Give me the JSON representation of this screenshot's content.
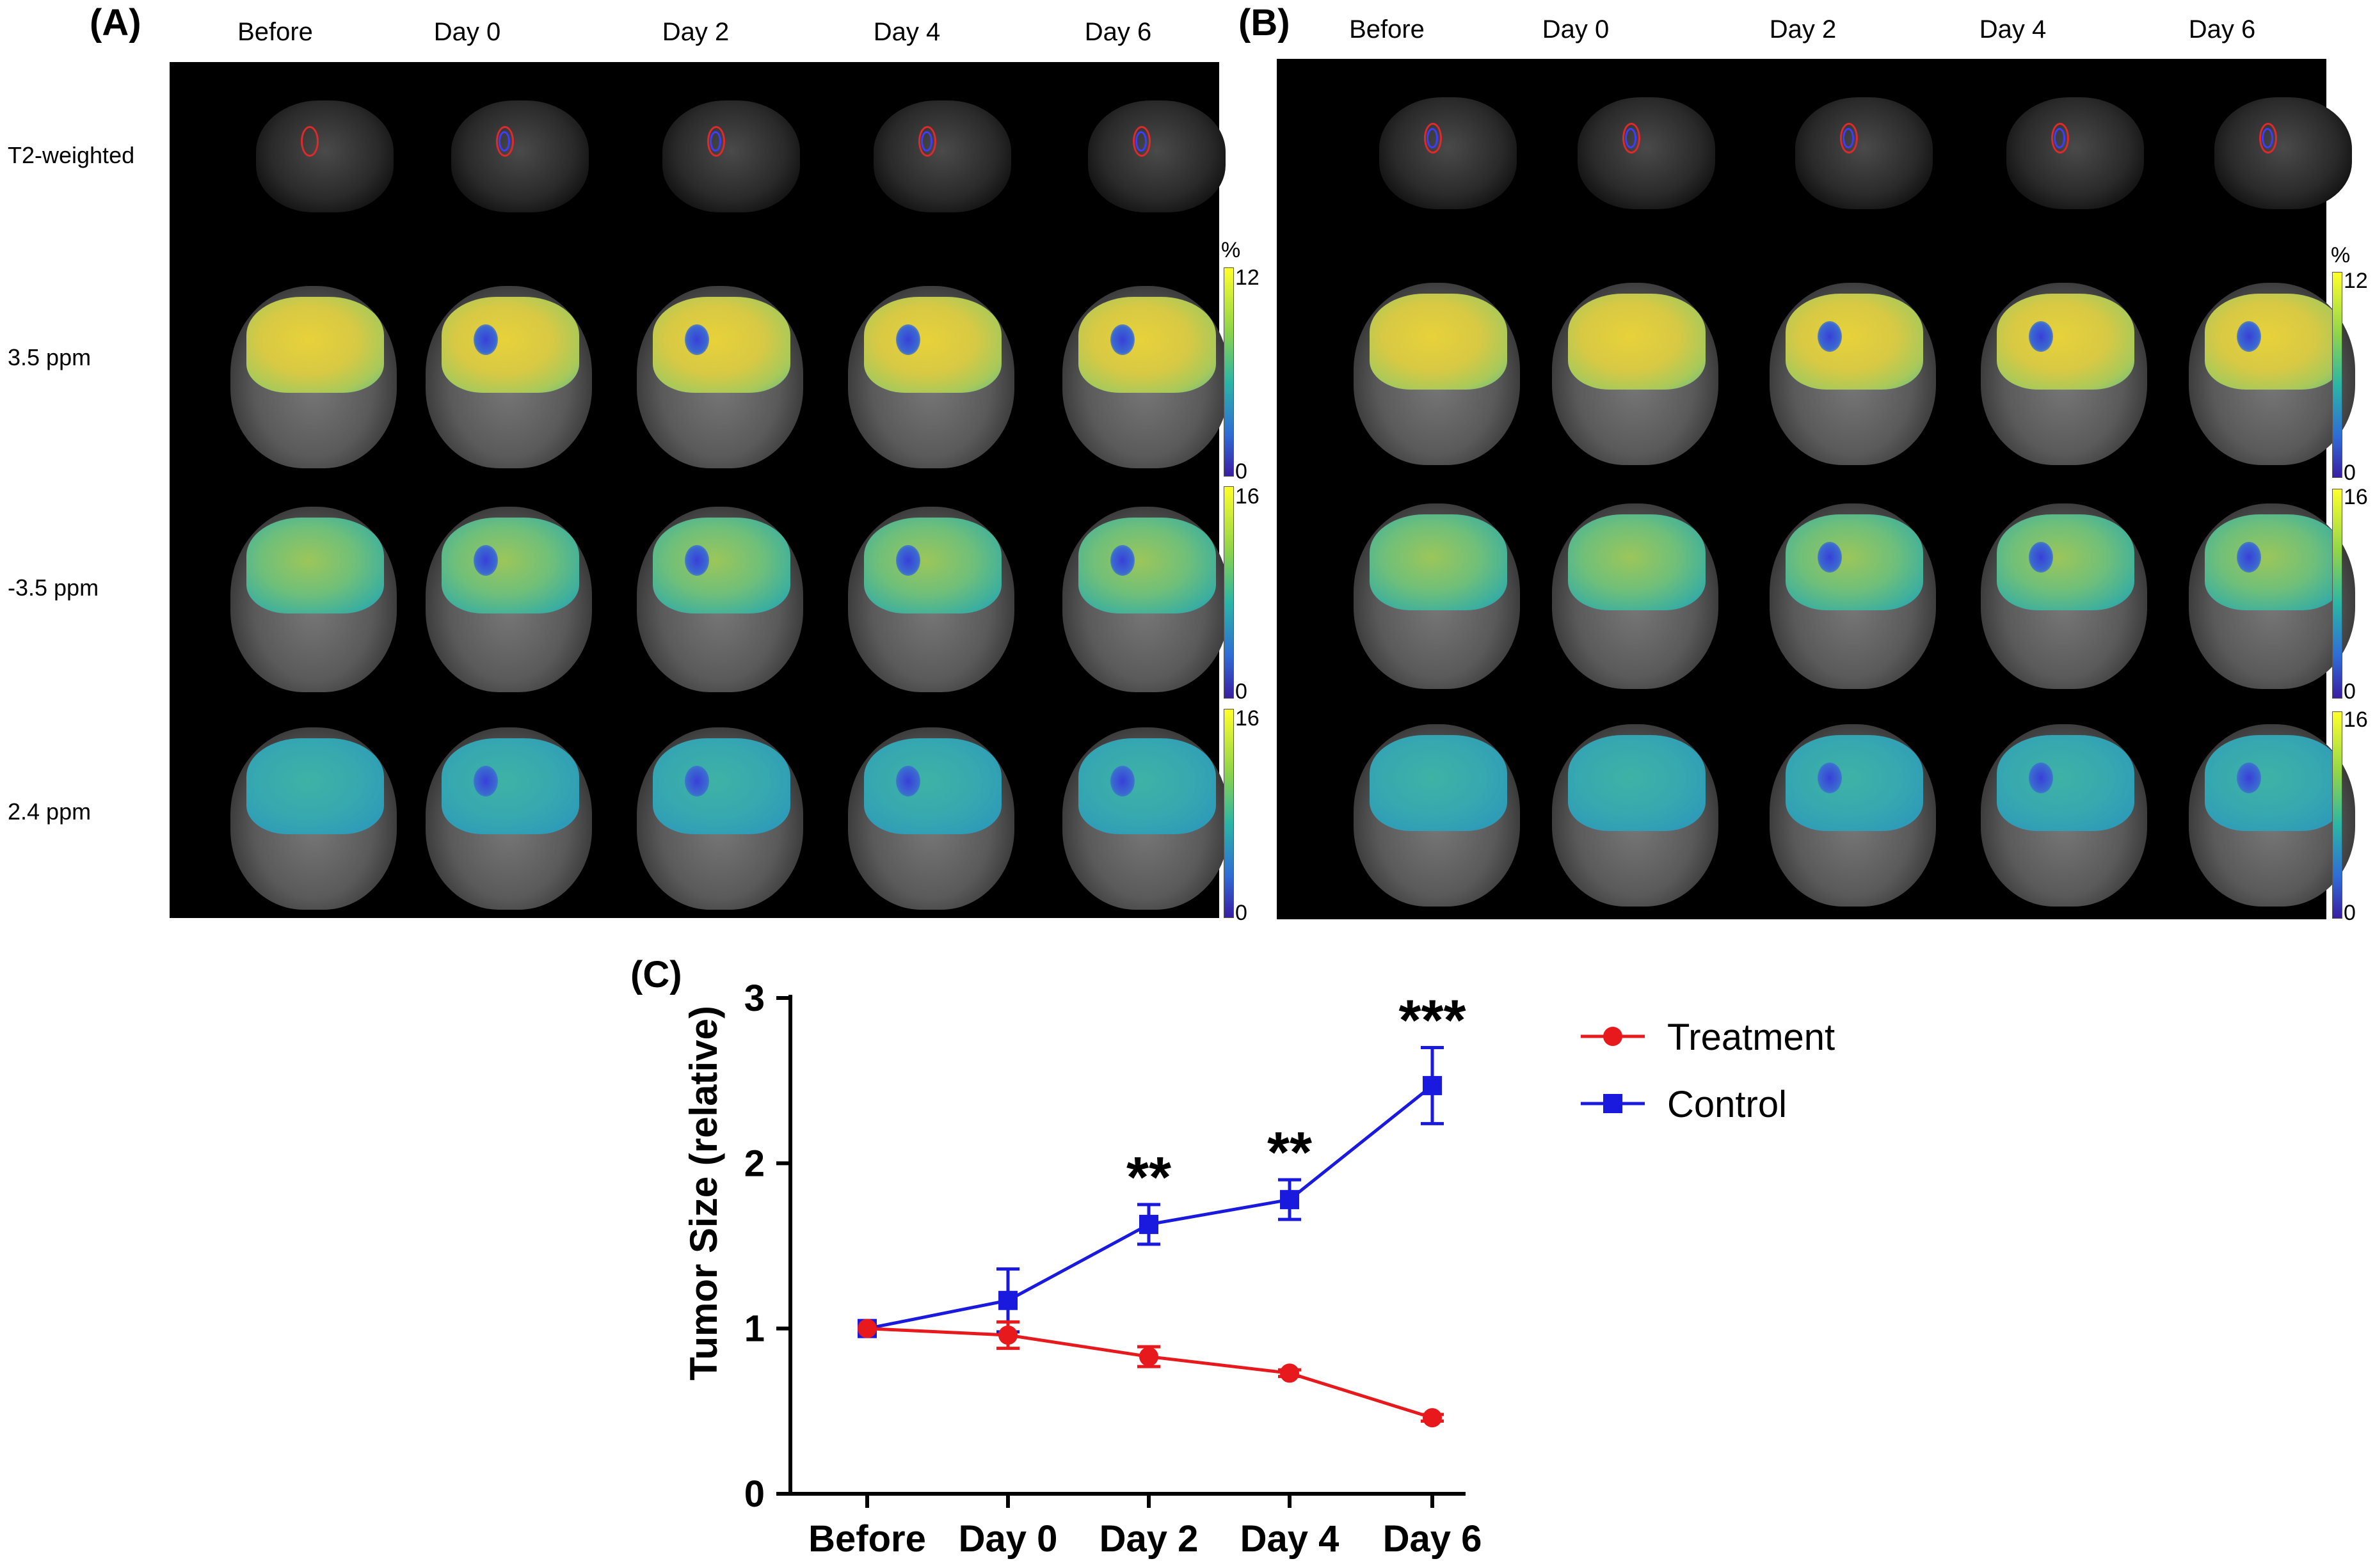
{
  "panels": {
    "a_label": "(A)",
    "b_label": "(B)",
    "c_label": "(C)",
    "columns": [
      "Before",
      "Day 0",
      "Day 2",
      "Day 4",
      "Day 6"
    ],
    "rows": [
      "T2-weighted",
      "3.5 ppm",
      "-3.5 ppm",
      "2.4 ppm"
    ],
    "colorbars": [
      {
        "unit": "%",
        "max": "12",
        "min": "0"
      },
      {
        "unit": "",
        "max": "16",
        "min": "0"
      },
      {
        "unit": "",
        "max": "16",
        "min": "0"
      }
    ]
  },
  "chart_data": {
    "type": "line",
    "categories": [
      "Before",
      "Day 0",
      "Day 2",
      "Day 4",
      "Day 6"
    ],
    "ylabel": "Tumor Size (relative)",
    "xlabel": "",
    "ylim": [
      0,
      3
    ],
    "yticks": [
      "0",
      "1",
      "2",
      "3"
    ],
    "legend_position": "top-right",
    "series": [
      {
        "name": "Treatment",
        "color": "#e8191c",
        "marker": "circle",
        "values": [
          1.0,
          0.96,
          0.83,
          0.73,
          0.46
        ],
        "errors": [
          0,
          0.08,
          0.06,
          0.02,
          0.02
        ]
      },
      {
        "name": "Control",
        "color": "#1a1adf",
        "marker": "square",
        "values": [
          1.0,
          1.17,
          1.63,
          1.78,
          2.47
        ],
        "errors": [
          0,
          0.19,
          0.12,
          0.12,
          0.23
        ]
      }
    ],
    "annotations": [
      "",
      "",
      "**",
      "**",
      "***"
    ]
  }
}
